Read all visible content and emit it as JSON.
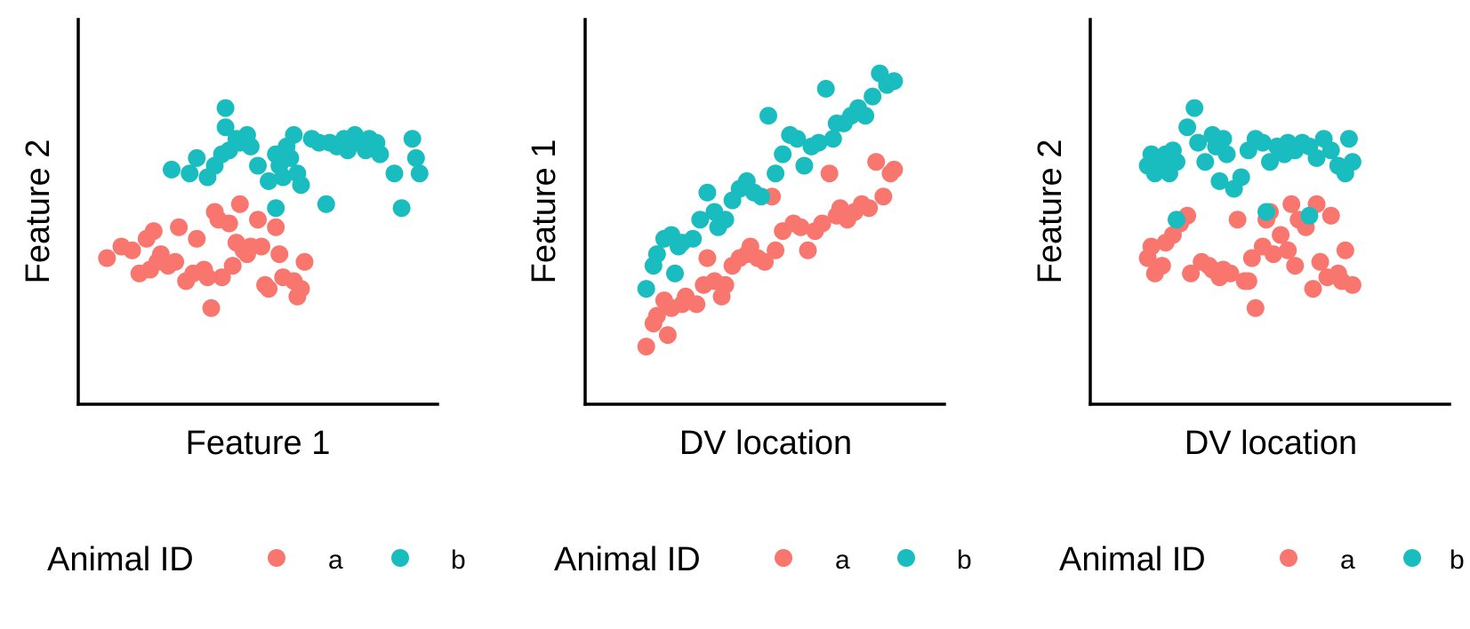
{
  "colors": {
    "a": "#F8766D",
    "b": "#1ABDBF"
  },
  "chart_data": [
    {
      "type": "scatter",
      "title": "",
      "xlabel": "Feature 1",
      "ylabel": "Feature 2",
      "xlim": [
        0,
        10
      ],
      "ylim": [
        0,
        10
      ],
      "legend": {
        "title": "Animal ID",
        "position": "bottom",
        "entries": [
          "a",
          "b"
        ]
      },
      "series": [
        {
          "name": "a",
          "points": [
            [
              0.8,
              3.8
            ],
            [
              1.2,
              4.1
            ],
            [
              1.5,
              4.0
            ],
            [
              1.7,
              3.4
            ],
            [
              1.9,
              4.3
            ],
            [
              2.0,
              3.5
            ],
            [
              2.1,
              4.5
            ],
            [
              2.2,
              3.7
            ],
            [
              2.3,
              3.9
            ],
            [
              2.5,
              3.6
            ],
            [
              2.7,
              3.7
            ],
            [
              2.8,
              4.6
            ],
            [
              3.0,
              3.2
            ],
            [
              3.2,
              3.4
            ],
            [
              3.3,
              4.3
            ],
            [
              3.5,
              3.5
            ],
            [
              3.6,
              3.3
            ],
            [
              3.7,
              2.5
            ],
            [
              3.8,
              5.0
            ],
            [
              3.9,
              4.8
            ],
            [
              4.0,
              3.3
            ],
            [
              4.2,
              4.7
            ],
            [
              4.3,
              3.6
            ],
            [
              4.4,
              4.2
            ],
            [
              4.5,
              5.2
            ],
            [
              4.6,
              4.0
            ],
            [
              4.7,
              3.9
            ],
            [
              4.8,
              4.1
            ],
            [
              5.0,
              4.8
            ],
            [
              5.1,
              4.1
            ],
            [
              5.2,
              3.1
            ],
            [
              5.3,
              3.0
            ],
            [
              5.5,
              4.6
            ],
            [
              5.6,
              3.9
            ],
            [
              5.7,
              3.3
            ],
            [
              6.0,
              3.2
            ],
            [
              6.1,
              2.8
            ],
            [
              6.2,
              3.0
            ],
            [
              6.3,
              3.7
            ]
          ]
        },
        {
          "name": "b",
          "points": [
            [
              2.6,
              6.1
            ],
            [
              3.1,
              6.0
            ],
            [
              3.3,
              6.4
            ],
            [
              3.6,
              5.9
            ],
            [
              3.8,
              6.2
            ],
            [
              4.0,
              6.5
            ],
            [
              4.1,
              7.2
            ],
            [
              4.1,
              7.7
            ],
            [
              4.2,
              6.6
            ],
            [
              4.4,
              6.9
            ],
            [
              4.5,
              6.8
            ],
            [
              4.7,
              7.0
            ],
            [
              4.8,
              6.7
            ],
            [
              5.0,
              6.2
            ],
            [
              5.3,
              5.8
            ],
            [
              5.5,
              6.5
            ],
            [
              5.6,
              6.2
            ],
            [
              5.7,
              5.9
            ],
            [
              5.8,
              6.7
            ],
            [
              5.9,
              6.4
            ],
            [
              6.0,
              7.0
            ],
            [
              6.1,
              6.0
            ],
            [
              6.2,
              5.7
            ],
            [
              6.5,
              6.9
            ],
            [
              6.7,
              6.8
            ],
            [
              6.9,
              5.2
            ],
            [
              7.0,
              6.8
            ],
            [
              7.2,
              6.7
            ],
            [
              7.4,
              6.9
            ],
            [
              7.5,
              6.6
            ],
            [
              7.7,
              7.0
            ],
            [
              7.8,
              6.8
            ],
            [
              8.0,
              6.6
            ],
            [
              8.1,
              6.9
            ],
            [
              8.3,
              6.8
            ],
            [
              8.4,
              6.5
            ],
            [
              8.8,
              6.0
            ],
            [
              9.0,
              5.1
            ],
            [
              9.3,
              6.9
            ],
            [
              9.4,
              6.4
            ],
            [
              9.5,
              6.0
            ],
            [
              5.5,
              5.1
            ]
          ]
        }
      ]
    },
    {
      "type": "scatter",
      "title": "",
      "xlabel": "DV location",
      "ylabel": "Feature 1",
      "xlim": [
        0,
        10
      ],
      "ylim": [
        0,
        10
      ],
      "legend": {
        "title": "Animal ID",
        "position": "bottom",
        "entries": [
          "a",
          "b"
        ]
      },
      "series": [
        {
          "name": "a",
          "points": [
            [
              1.7,
              1.5
            ],
            [
              1.9,
              2.1
            ],
            [
              2.0,
              2.3
            ],
            [
              2.2,
              2.7
            ],
            [
              2.3,
              1.8
            ],
            [
              2.4,
              2.5
            ],
            [
              2.7,
              2.6
            ],
            [
              2.8,
              2.8
            ],
            [
              3.1,
              2.6
            ],
            [
              3.3,
              3.1
            ],
            [
              3.4,
              3.8
            ],
            [
              3.6,
              3.2
            ],
            [
              3.8,
              2.8
            ],
            [
              3.9,
              3.1
            ],
            [
              4.1,
              3.6
            ],
            [
              4.3,
              3.8
            ],
            [
              4.5,
              3.9
            ],
            [
              4.6,
              4.1
            ],
            [
              4.8,
              3.8
            ],
            [
              5.0,
              3.7
            ],
            [
              5.2,
              5.4
            ],
            [
              5.3,
              4.0
            ],
            [
              5.5,
              4.5
            ],
            [
              5.8,
              4.7
            ],
            [
              6.0,
              4.6
            ],
            [
              6.2,
              4.0
            ],
            [
              6.4,
              4.5
            ],
            [
              6.6,
              4.7
            ],
            [
              6.8,
              6.0
            ],
            [
              7.0,
              4.9
            ],
            [
              7.1,
              5.1
            ],
            [
              7.3,
              4.8
            ],
            [
              7.5,
              5.0
            ],
            [
              7.7,
              5.2
            ],
            [
              7.9,
              5.1
            ],
            [
              8.1,
              6.3
            ],
            [
              8.3,
              5.4
            ],
            [
              8.5,
              6.0
            ],
            [
              8.6,
              6.1
            ]
          ]
        },
        {
          "name": "b",
          "points": [
            [
              1.7,
              3.0
            ],
            [
              1.9,
              3.6
            ],
            [
              2.0,
              3.9
            ],
            [
              2.2,
              4.3
            ],
            [
              2.4,
              4.4
            ],
            [
              2.5,
              3.4
            ],
            [
              2.6,
              4.1
            ],
            [
              2.7,
              4.2
            ],
            [
              3.0,
              4.3
            ],
            [
              3.2,
              4.8
            ],
            [
              3.4,
              5.5
            ],
            [
              3.6,
              5.0
            ],
            [
              3.7,
              4.6
            ],
            [
              3.9,
              4.8
            ],
            [
              4.1,
              5.3
            ],
            [
              4.3,
              5.6
            ],
            [
              4.5,
              5.8
            ],
            [
              4.7,
              5.5
            ],
            [
              4.9,
              5.4
            ],
            [
              5.1,
              7.5
            ],
            [
              5.3,
              6.0
            ],
            [
              5.5,
              6.5
            ],
            [
              5.7,
              7.0
            ],
            [
              5.9,
              6.9
            ],
            [
              6.1,
              6.2
            ],
            [
              6.3,
              6.7
            ],
            [
              6.5,
              6.8
            ],
            [
              6.7,
              8.2
            ],
            [
              6.9,
              6.9
            ],
            [
              7.0,
              7.3
            ],
            [
              7.2,
              7.3
            ],
            [
              7.4,
              7.5
            ],
            [
              7.6,
              7.7
            ],
            [
              7.8,
              7.5
            ],
            [
              8.0,
              8.0
            ],
            [
              8.2,
              8.6
            ],
            [
              8.4,
              8.3
            ],
            [
              8.6,
              8.4
            ]
          ]
        }
      ]
    },
    {
      "type": "scatter",
      "title": "",
      "xlabel": "DV location",
      "ylabel": "Feature 2",
      "xlim": [
        0,
        10
      ],
      "ylim": [
        0,
        10
      ],
      "legend": {
        "title": "Animal ID",
        "position": "bottom",
        "entries": [
          "a",
          "b"
        ]
      },
      "series": [
        {
          "name": "a",
          "points": [
            [
              1.6,
              3.8
            ],
            [
              1.7,
              4.1
            ],
            [
              1.8,
              3.4
            ],
            [
              2.0,
              3.6
            ],
            [
              2.1,
              4.2
            ],
            [
              2.3,
              4.4
            ],
            [
              2.5,
              4.7
            ],
            [
              2.7,
              4.9
            ],
            [
              2.8,
              3.4
            ],
            [
              3.1,
              3.7
            ],
            [
              3.3,
              3.6
            ],
            [
              3.4,
              3.5
            ],
            [
              3.6,
              3.3
            ],
            [
              3.7,
              3.5
            ],
            [
              3.9,
              3.4
            ],
            [
              4.1,
              4.8
            ],
            [
              4.3,
              3.2
            ],
            [
              4.4,
              3.2
            ],
            [
              4.5,
              3.8
            ],
            [
              4.6,
              2.5
            ],
            [
              4.8,
              4.1
            ],
            [
              4.9,
              4.8
            ],
            [
              5.0,
              5.0
            ],
            [
              5.1,
              3.9
            ],
            [
              5.3,
              4.4
            ],
            [
              5.5,
              4.0
            ],
            [
              5.6,
              5.2
            ],
            [
              5.7,
              3.6
            ],
            [
              5.8,
              4.8
            ],
            [
              6.0,
              4.6
            ],
            [
              6.2,
              3.0
            ],
            [
              6.3,
              5.2
            ],
            [
              6.4,
              3.7
            ],
            [
              6.6,
              3.3
            ],
            [
              6.7,
              4.9
            ],
            [
              6.9,
              3.4
            ],
            [
              7.0,
              3.2
            ],
            [
              7.1,
              4.0
            ],
            [
              7.3,
              3.1
            ]
          ]
        },
        {
          "name": "b",
          "points": [
            [
              1.6,
              6.2
            ],
            [
              1.7,
              6.5
            ],
            [
              1.8,
              6.0
            ],
            [
              2.0,
              6.3
            ],
            [
              2.1,
              6.5
            ],
            [
              2.2,
              6.0
            ],
            [
              2.3,
              6.6
            ],
            [
              2.4,
              6.3
            ],
            [
              2.7,
              7.2
            ],
            [
              2.9,
              7.7
            ],
            [
              3.0,
              6.8
            ],
            [
              3.2,
              6.3
            ],
            [
              3.4,
              7.0
            ],
            [
              3.5,
              6.7
            ],
            [
              3.6,
              5.8
            ],
            [
              3.7,
              6.9
            ],
            [
              3.8,
              6.5
            ],
            [
              4.0,
              5.6
            ],
            [
              4.2,
              5.9
            ],
            [
              4.4,
              6.6
            ],
            [
              4.6,
              6.9
            ],
            [
              4.8,
              6.8
            ],
            [
              5.0,
              6.3
            ],
            [
              5.2,
              6.7
            ],
            [
              5.4,
              6.5
            ],
            [
              5.5,
              6.8
            ],
            [
              5.7,
              6.6
            ],
            [
              5.9,
              6.8
            ],
            [
              6.1,
              6.7
            ],
            [
              6.3,
              6.4
            ],
            [
              6.5,
              6.9
            ],
            [
              6.7,
              6.6
            ],
            [
              6.9,
              6.2
            ],
            [
              7.1,
              6.0
            ],
            [
              7.2,
              6.9
            ],
            [
              7.3,
              6.3
            ],
            [
              2.4,
              4.8
            ],
            [
              4.9,
              5.0
            ],
            [
              6.1,
              4.9
            ]
          ]
        }
      ]
    }
  ]
}
